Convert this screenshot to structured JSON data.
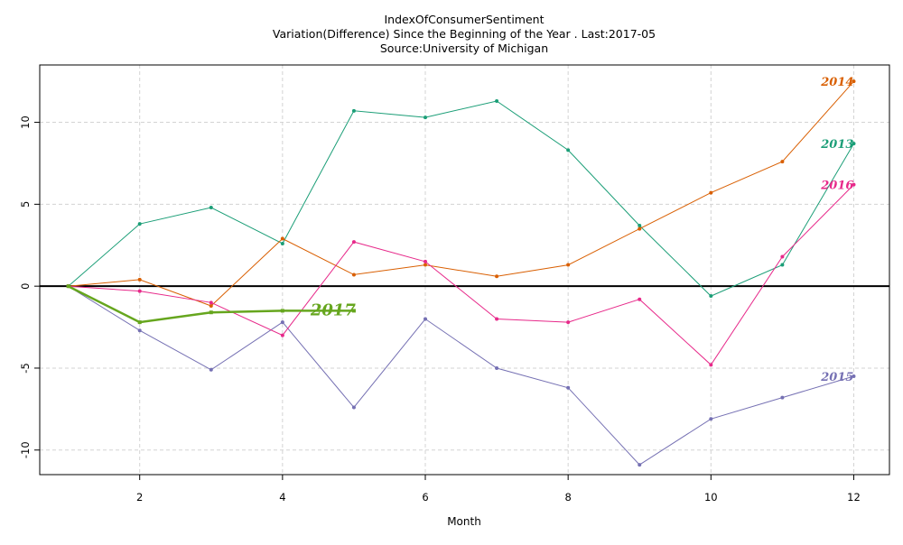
{
  "chart_data": {
    "type": "line",
    "title": "IndexOfConsumerSentiment",
    "subtitle": "Variation(Difference) Since the Beginning of the Year . Last:2017-05",
    "source": "Source:University of Michigan",
    "xlabel": "Month",
    "ylabel": "",
    "xlim": [
      0.6,
      12.5
    ],
    "ylim": [
      -11.5,
      13.5
    ],
    "x_ticks": [
      2,
      4,
      6,
      8,
      10,
      12
    ],
    "y_ticks": [
      -10,
      -5,
      0,
      5,
      10
    ],
    "grid": true,
    "zero_line": true,
    "series": [
      {
        "name": "2013",
        "color": "#1b9e77",
        "x": [
          1,
          2,
          3,
          4,
          5,
          6,
          7,
          8,
          9,
          10,
          11,
          12
        ],
        "y": [
          0,
          3.8,
          4.8,
          2.6,
          10.7,
          10.3,
          11.3,
          8.3,
          3.7,
          -0.6,
          1.3,
          8.7
        ]
      },
      {
        "name": "2014",
        "color": "#d95f02",
        "x": [
          1,
          2,
          3,
          4,
          5,
          6,
          7,
          8,
          9,
          10,
          11,
          12
        ],
        "y": [
          0,
          0.4,
          -1.2,
          2.9,
          0.7,
          1.3,
          0.6,
          1.3,
          3.5,
          5.7,
          7.6,
          12.5
        ]
      },
      {
        "name": "2015",
        "color": "#7570b3",
        "x": [
          1,
          2,
          3,
          4,
          5,
          6,
          7,
          8,
          9,
          10,
          11,
          12
        ],
        "y": [
          0,
          -2.7,
          -5.1,
          -2.2,
          -7.4,
          -2.0,
          -5.0,
          -6.2,
          -10.9,
          -8.1,
          -6.8,
          -5.5
        ]
      },
      {
        "name": "2016",
        "color": "#e7298a",
        "x": [
          1,
          2,
          3,
          4,
          5,
          6,
          7,
          8,
          9,
          10,
          11,
          12
        ],
        "y": [
          0,
          -0.3,
          -1.0,
          -3.0,
          2.7,
          1.5,
          -2.0,
          -2.2,
          -0.8,
          -4.8,
          1.8,
          6.2
        ]
      },
      {
        "name": "2017",
        "color": "#66a61e",
        "x": [
          1,
          2,
          3,
          4,
          5
        ],
        "y": [
          0,
          -2.2,
          -1.6,
          -1.5,
          -1.5
        ]
      }
    ]
  }
}
